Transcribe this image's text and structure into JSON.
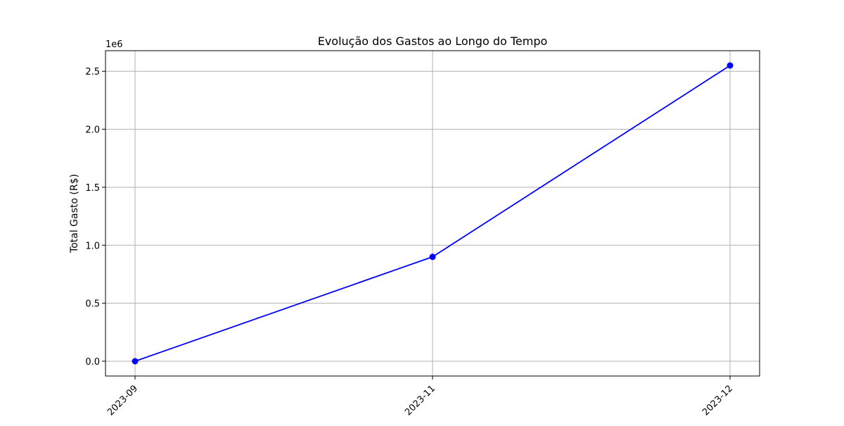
{
  "chart_data": {
    "type": "line",
    "title": "Evolução dos Gastos ao Longo do Tempo",
    "xlabel": "",
    "ylabel": "Total Gasto (R$)",
    "y_scale_label": "1e6",
    "categories": [
      "2023-09",
      "2023-11",
      "2023-12"
    ],
    "series": [
      {
        "values": [
          0,
          900000,
          2550000
        ],
        "color": "#0000ff",
        "marker": "circle"
      }
    ],
    "yticks": [
      0,
      500000,
      1000000,
      1500000,
      2000000,
      2500000
    ],
    "ytick_labels": [
      "0.0",
      "0.5",
      "1.0",
      "1.5",
      "2.0",
      "2.5"
    ],
    "ylim": [
      -127500,
      2677500
    ],
    "grid": true,
    "x_tick_rotation": 45
  }
}
